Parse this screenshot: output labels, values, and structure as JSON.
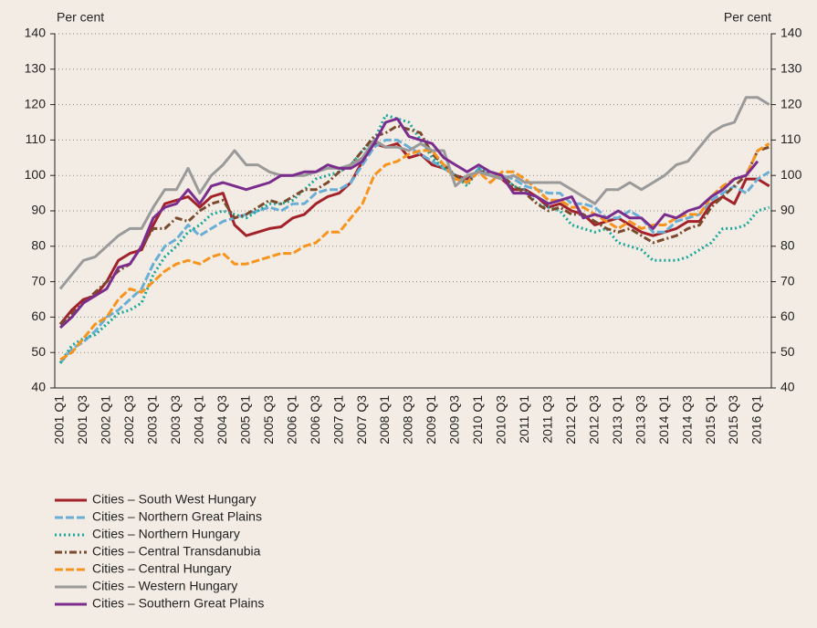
{
  "chart_data": {
    "type": "line",
    "y_axis_label": "Per cent",
    "y2_axis_label": "Per cent",
    "categories": [
      "2001 Q1",
      null,
      "2001 Q3",
      null,
      "2002 Q1",
      null,
      "2002 Q3",
      null,
      "2003 Q1",
      null,
      "2003 Q3",
      null,
      "2004 Q1",
      null,
      "2004 Q3",
      null,
      "2005 Q1",
      null,
      "2005 Q3",
      null,
      "2006 Q1",
      null,
      "2006 Q3",
      null,
      "2007 Q1",
      null,
      "2007 Q3",
      null,
      "2008 Q1",
      null,
      "2008 Q3",
      null,
      "2009 Q1",
      null,
      "2009 Q3",
      null,
      "2010 Q1",
      null,
      "2010 Q3",
      null,
      "2011 Q1",
      null,
      "2011 Q3",
      null,
      "2012 Q1",
      null,
      "2012 Q3",
      null,
      "2013 Q1",
      null,
      "2013 Q3",
      null,
      "2014 Q1",
      null,
      "2014 Q3",
      null,
      "2015 Q1",
      null,
      "2015 Q3",
      null,
      "2016 Q1",
      null
    ],
    "ylim": [
      40,
      140
    ],
    "yticks": [
      40,
      50,
      60,
      70,
      80,
      90,
      100,
      110,
      120,
      130,
      140
    ],
    "y2lim": [
      40,
      140
    ],
    "y2ticks": [
      40,
      50,
      60,
      70,
      80,
      90,
      100,
      110,
      120,
      130,
      140
    ],
    "grid": true,
    "series": [
      {
        "name": "Cities – South West Hungary",
        "color": "#a3222a",
        "dash": "solid",
        "values": [
          58,
          62,
          65,
          66,
          70,
          76,
          78,
          79,
          86,
          92,
          93,
          94,
          91,
          94,
          95,
          86,
          83,
          84,
          85,
          85.5,
          88,
          89,
          92,
          94,
          95,
          98,
          104,
          109,
          108,
          109,
          105,
          106,
          103,
          102,
          100,
          99,
          101,
          100,
          99,
          96,
          96,
          94,
          91,
          92,
          90,
          89,
          86,
          87,
          88,
          86,
          84,
          83,
          84,
          85,
          87,
          87,
          92,
          94,
          92,
          99,
          99,
          97
        ]
      },
      {
        "name": "Cities – Northern Great Plains",
        "color": "#6aaed6",
        "dash": "dashed",
        "values": [
          47,
          51,
          53,
          56,
          60,
          62,
          65,
          68,
          75,
          80,
          82,
          86,
          83,
          85,
          87,
          88,
          89,
          90,
          91,
          90,
          92,
          92,
          95,
          96,
          96,
          98,
          103,
          108,
          110,
          110,
          108,
          106,
          104,
          102,
          100,
          98,
          102,
          100,
          100,
          99,
          97,
          96,
          95,
          95,
          92,
          92,
          91,
          88,
          88,
          90,
          88,
          84,
          84,
          87,
          88,
          89,
          93,
          95,
          97,
          95,
          99,
          101
        ]
      },
      {
        "name": "Cities – Northern Hungary",
        "color": "#1aa79b",
        "dash": "dotted",
        "values": [
          47,
          52,
          54,
          55,
          58,
          61,
          62,
          64,
          72,
          77,
          80,
          84,
          86,
          89,
          90,
          89,
          88,
          90,
          92,
          92,
          93,
          96,
          99,
          100,
          101,
          103,
          107,
          110,
          117,
          116,
          115,
          110,
          105,
          102,
          100,
          97,
          102,
          101,
          100,
          97,
          96,
          92,
          91,
          90,
          86,
          85,
          84,
          85,
          81,
          80,
          79,
          76,
          76,
          76,
          77,
          79,
          81,
          85,
          85,
          86,
          90,
          91
        ]
      },
      {
        "name": "Cities – Central Transdanubia",
        "color": "#7a4a2e",
        "dash": "dashdot",
        "values": [
          58,
          61,
          64,
          67,
          70,
          73,
          75,
          80,
          85,
          85,
          88,
          87,
          90,
          92,
          93,
          88,
          89,
          91,
          93,
          92,
          94,
          96,
          96,
          98,
          101,
          103,
          107,
          111,
          112,
          114,
          113,
          112,
          106,
          103,
          100,
          98,
          101,
          101,
          100,
          97,
          95,
          92,
          90,
          91,
          89,
          89,
          87,
          85,
          84,
          85,
          83,
          81,
          82,
          83,
          85,
          86,
          91,
          94,
          97,
          100,
          107,
          108
        ]
      },
      {
        "name": "Cities – Central Hungary",
        "color": "#f7941d",
        "dash": "dashed",
        "values": [
          48,
          50,
          54,
          58,
          60,
          65,
          68,
          67,
          70,
          73,
          75,
          76,
          75,
          77,
          78,
          75,
          75,
          76,
          77,
          78,
          78,
          80,
          81,
          84,
          84,
          88,
          92,
          100,
          103,
          104,
          106,
          107,
          107,
          103,
          99,
          98,
          101,
          98,
          101,
          101,
          99,
          96,
          93,
          93,
          91,
          91,
          89,
          87,
          85,
          87,
          85,
          86,
          86,
          88,
          89,
          89,
          94,
          97,
          99,
          100,
          107,
          109
        ]
      },
      {
        "name": "Cities – Western Hungary",
        "color": "#9a9a9a",
        "dash": "solid",
        "values": [
          68,
          72,
          76,
          77,
          80,
          83,
          85,
          85,
          91,
          96,
          96,
          102,
          95,
          100,
          103,
          107,
          103,
          103,
          101,
          100,
          100,
          100,
          101,
          102,
          102,
          103,
          105,
          110,
          108,
          108,
          107,
          109,
          107,
          107,
          97,
          100,
          101,
          100,
          99,
          100,
          98,
          98,
          98,
          98,
          96,
          94,
          92,
          96,
          96,
          98,
          96,
          98,
          100,
          103,
          104,
          108,
          112,
          114,
          115,
          122,
          122,
          120
        ]
      },
      {
        "name": "Cities – Southern Great Plains",
        "color": "#7b2d8e",
        "dash": "solid",
        "values": [
          57,
          60,
          64,
          66,
          68,
          74,
          75,
          80,
          88,
          91,
          92,
          96,
          92,
          97,
          98,
          97,
          96,
          97,
          98,
          100,
          100,
          101,
          101,
          103,
          102,
          102,
          104,
          109,
          115,
          116,
          111,
          110,
          109,
          105,
          103,
          101,
          103,
          101,
          100,
          95,
          95,
          94,
          92,
          93,
          94,
          88,
          89,
          88,
          90,
          88,
          88,
          85,
          89,
          88,
          90,
          91,
          94,
          96,
          99,
          100,
          104,
          null
        ]
      }
    ]
  }
}
